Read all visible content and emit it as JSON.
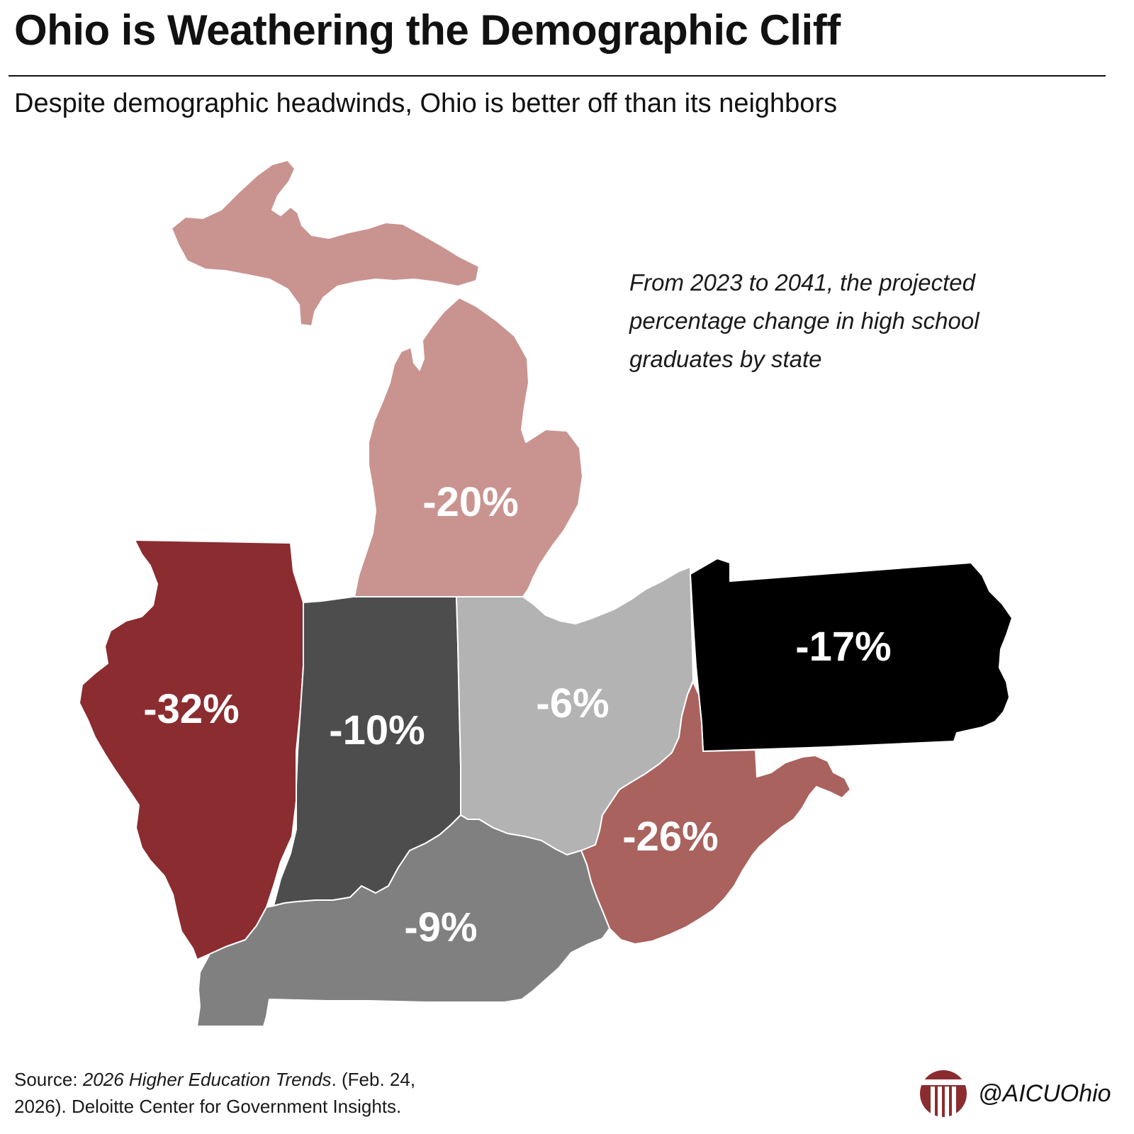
{
  "title": "Ohio is Weathering the Demographic Cliff",
  "subtitle": "Despite demographic headwinds, Ohio is better off than its neighbors",
  "note": {
    "line1": "From 2023 to 2041, the projected",
    "line2": "percentage change in high school",
    "line3": "graduates by state"
  },
  "states": {
    "michigan": {
      "label": "-20%",
      "value": -20,
      "color": "#c99490"
    },
    "illinois": {
      "label": "-32%",
      "value": -32,
      "color": "#8b2c30"
    },
    "indiana": {
      "label": "-10%",
      "value": -10,
      "color": "#4d4d4d"
    },
    "ohio": {
      "label": "-6%",
      "value": -6,
      "color": "#b3b3b3"
    },
    "pennsylvania": {
      "label": "-17%",
      "value": -17,
      "color": "#000000"
    },
    "west_virginia": {
      "label": "-26%",
      "value": -26,
      "color": "#a9625e"
    },
    "kentucky": {
      "label": "-9%",
      "value": -9,
      "color": "#808080"
    }
  },
  "source": {
    "prefix": "Source: ",
    "publication": "2026 Higher Education Trends",
    "line1_rest": ". (Feb. 24,",
    "line2": "2026). Deloitte Center for Government Insights."
  },
  "brand": {
    "handle": "@AICUOhio",
    "logo_color": "#8b2c30",
    "logo_icon": "columns-logo-icon"
  }
}
